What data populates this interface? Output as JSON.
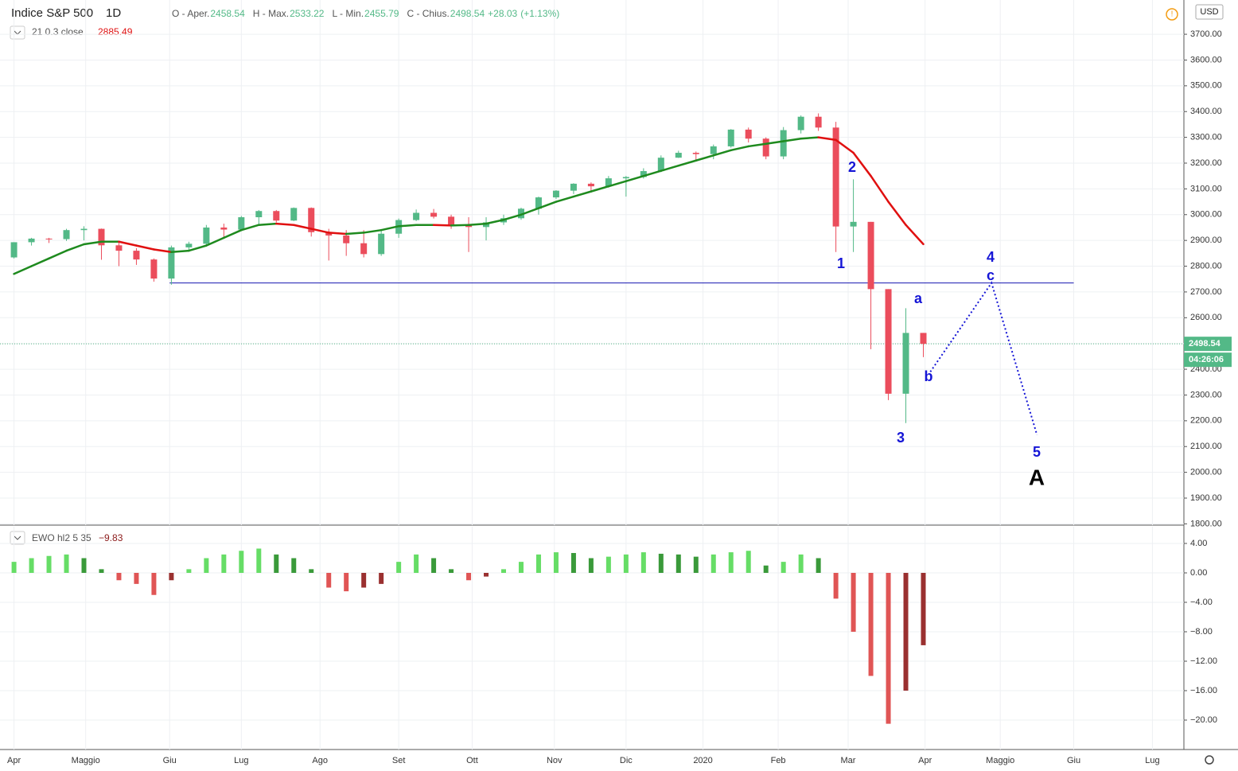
{
  "chart_data": {
    "type": "candlestick",
    "symbol": "Indice S&P 500",
    "interval": "1D",
    "header": [
      {
        "label": "O - Aper.",
        "value": "2458.54"
      },
      {
        "label": "H - Max.",
        "value": "2533.22"
      },
      {
        "label": "L - Min.",
        "value": "2455.79"
      },
      {
        "label": "C - Chius.",
        "value": "2498.54"
      }
    ],
    "change": "+28.03",
    "change_pct": "(+1.13%)",
    "currency": "USD",
    "up_color": "#53b987",
    "down_color": "#eb4d5c",
    "xlim": [
      -0.8,
      66.9
    ],
    "xticks": [
      {
        "value": 0,
        "label": "Apr"
      },
      {
        "value": 4.1,
        "label": "Maggio"
      },
      {
        "value": 8.9,
        "label": "Giu"
      },
      {
        "value": 13,
        "label": "Lug"
      },
      {
        "value": 17.5,
        "label": "Ago"
      },
      {
        "value": 22,
        "label": "Set"
      },
      {
        "value": 26.2,
        "label": "Ott"
      },
      {
        "value": 30.9,
        "label": "Nov"
      },
      {
        "value": 35,
        "label": "Dic"
      },
      {
        "value": 39.4,
        "label": "2020"
      },
      {
        "value": 43.7,
        "label": "Feb"
      },
      {
        "value": 47.7,
        "label": "Mar"
      },
      {
        "value": 52.1,
        "label": "Apr"
      },
      {
        "value": 56.4,
        "label": "Maggio"
      },
      {
        "value": 60.6,
        "label": "Giu"
      },
      {
        "value": 65.1,
        "label": "Lug"
      }
    ],
    "ylim": [
      1795,
      3833
    ],
    "yticks": [
      {
        "value": 1800,
        "label": "1800.00"
      },
      {
        "value": 1900,
        "label": "1900.00"
      },
      {
        "value": 2000,
        "label": "2000.00"
      },
      {
        "value": 2100,
        "label": "2100.00"
      },
      {
        "value": 2200,
        "label": "2200.00"
      },
      {
        "value": 2300,
        "label": "2300.00"
      },
      {
        "value": 2400,
        "label": "2400.00"
      },
      {
        "value": 2500,
        "label": "2500.00"
      },
      {
        "value": 2600,
        "label": "2600.00"
      },
      {
        "value": 2700,
        "label": "2700.00"
      },
      {
        "value": 2800,
        "label": "2800.00"
      },
      {
        "value": 2900,
        "label": "2900.00"
      },
      {
        "value": 3000,
        "label": "3000.00"
      },
      {
        "value": 3100,
        "label": "3100.00"
      },
      {
        "value": 3200,
        "label": "3200.00"
      },
      {
        "value": 3300,
        "label": "3300.00"
      },
      {
        "value": 3400,
        "label": "3400.00"
      },
      {
        "value": 3500,
        "label": "3500.00"
      },
      {
        "value": 3600,
        "label": "3600.00"
      },
      {
        "value": 3700,
        "label": "3700.00"
      }
    ],
    "grid": true,
    "candles": [
      [
        2834,
        2893,
        2830,
        2893
      ],
      [
        2893,
        2910,
        2880,
        2907
      ],
      [
        2907,
        2910,
        2890,
        2905
      ],
      [
        2905,
        2945,
        2898,
        2940
      ],
      [
        2940,
        2955,
        2900,
        2945
      ],
      [
        2945,
        2946,
        2825,
        2881
      ],
      [
        2881,
        2892,
        2800,
        2860
      ],
      [
        2860,
        2870,
        2805,
        2826
      ],
      [
        2826,
        2830,
        2740,
        2752
      ],
      [
        2752,
        2880,
        2728,
        2873
      ],
      [
        2873,
        2895,
        2860,
        2887
      ],
      [
        2887,
        2960,
        2880,
        2950
      ],
      [
        2950,
        2965,
        2912,
        2942
      ],
      [
        2942,
        2995,
        2940,
        2990
      ],
      [
        2990,
        3018,
        2962,
        3014
      ],
      [
        3014,
        3018,
        2970,
        2977
      ],
      [
        2977,
        3028,
        2975,
        3026
      ],
      [
        3026,
        3028,
        2915,
        2932
      ],
      [
        2932,
        2945,
        2822,
        2919
      ],
      [
        2919,
        2940,
        2840,
        2889
      ],
      [
        2889,
        2940,
        2834,
        2847
      ],
      [
        2847,
        2940,
        2840,
        2926
      ],
      [
        2926,
        2985,
        2910,
        2979
      ],
      [
        2979,
        3020,
        2975,
        3007
      ],
      [
        3007,
        3022,
        2985,
        2992
      ],
      [
        2992,
        3000,
        2945,
        2962
      ],
      [
        2962,
        2990,
        2855,
        2952
      ],
      [
        2952,
        2990,
        2900,
        2970
      ],
      [
        2970,
        3000,
        2960,
        2986
      ],
      [
        2986,
        3027,
        2980,
        3023
      ],
      [
        3023,
        3070,
        3000,
        3067
      ],
      [
        3067,
        3095,
        3060,
        3093
      ],
      [
        3093,
        3122,
        3080,
        3120
      ],
      [
        3120,
        3125,
        3090,
        3110
      ],
      [
        3110,
        3150,
        3105,
        3141
      ],
      [
        3141,
        3150,
        3070,
        3146
      ],
      [
        3146,
        3180,
        3140,
        3169
      ],
      [
        3169,
        3230,
        3165,
        3221
      ],
      [
        3221,
        3248,
        3220,
        3240
      ],
      [
        3240,
        3245,
        3210,
        3235
      ],
      [
        3235,
        3272,
        3215,
        3265
      ],
      [
        3265,
        3332,
        3260,
        3330
      ],
      [
        3330,
        3338,
        3280,
        3295
      ],
      [
        3295,
        3300,
        3215,
        3226
      ],
      [
        3226,
        3340,
        3215,
        3328
      ],
      [
        3328,
        3385,
        3315,
        3380
      ],
      [
        3380,
        3393,
        3325,
        3338
      ],
      [
        3338,
        3360,
        2855,
        2954
      ],
      [
        2954,
        3137,
        2855,
        2972
      ],
      [
        2972,
        2972,
        2478,
        2711
      ],
      [
        2711,
        2711,
        2280,
        2305
      ],
      [
        2305,
        2637,
        2191,
        2541
      ],
      [
        2541,
        2541,
        2447,
        2498.54
      ]
    ],
    "ma": {
      "name": "21 0.3 close",
      "up_color": "#1e8a1e",
      "down_color": "#e01010",
      "values": [
        2770,
        2800,
        2830,
        2860,
        2885,
        2895,
        2895,
        2880,
        2865,
        2855,
        2860,
        2880,
        2910,
        2940,
        2960,
        2965,
        2960,
        2945,
        2930,
        2925,
        2930,
        2940,
        2955,
        2960,
        2960,
        2958,
        2960,
        2965,
        2980,
        3000,
        3025,
        3050,
        3070,
        3090,
        3110,
        3130,
        3150,
        3170,
        3190,
        3210,
        3230,
        3250,
        3265,
        3275,
        3285,
        3295,
        3300,
        3290,
        3240,
        3150,
        3050,
        2960,
        2885.49
      ]
    },
    "support_level": 2735,
    "projection": {
      "color": "#1515d6",
      "x": [
        52.4,
        55.9,
        58.5
      ],
      "y": [
        2390,
        2735,
        2145
      ]
    },
    "annotation_color": "#1515d6",
    "annotations": [
      "1",
      "2",
      "3",
      "4",
      "5",
      "a",
      "b",
      "c",
      "A"
    ],
    "countdown": "04:26:06",
    "ewo": {
      "name": "EWO hl2 5 35",
      "last_value_label": "−9.83",
      "ylim": [
        -24,
        6.27
      ],
      "yticks": [
        {
          "value": 4,
          "label": "4.00"
        },
        {
          "value": 0,
          "label": "0.00"
        },
        {
          "value": -4,
          "label": "−4.00"
        },
        {
          "value": -8,
          "label": "−8.00"
        },
        {
          "value": -12,
          "label": "−12.00"
        },
        {
          "value": -16,
          "label": "−16.00"
        },
        {
          "value": -20,
          "label": "−20.00"
        }
      ],
      "values": [
        1.5,
        2.0,
        2.3,
        2.5,
        2.0,
        0.5,
        -1.0,
        -1.5,
        -3.0,
        -1.0,
        0.5,
        2.0,
        2.5,
        3.0,
        3.3,
        2.5,
        2.0,
        0.5,
        -2.0,
        -2.5,
        -2.0,
        -1.5,
        1.5,
        2.5,
        2.0,
        0.5,
        -1.0,
        -0.5,
        0.5,
        1.5,
        2.5,
        2.8,
        2.7,
        2.0,
        2.2,
        2.5,
        2.8,
        2.6,
        2.5,
        2.2,
        2.5,
        2.8,
        3.0,
        1.0,
        1.5,
        2.5,
        2.0,
        -3.5,
        -8.0,
        -14.0,
        -20.5,
        -16.0,
        -9.83
      ]
    }
  }
}
